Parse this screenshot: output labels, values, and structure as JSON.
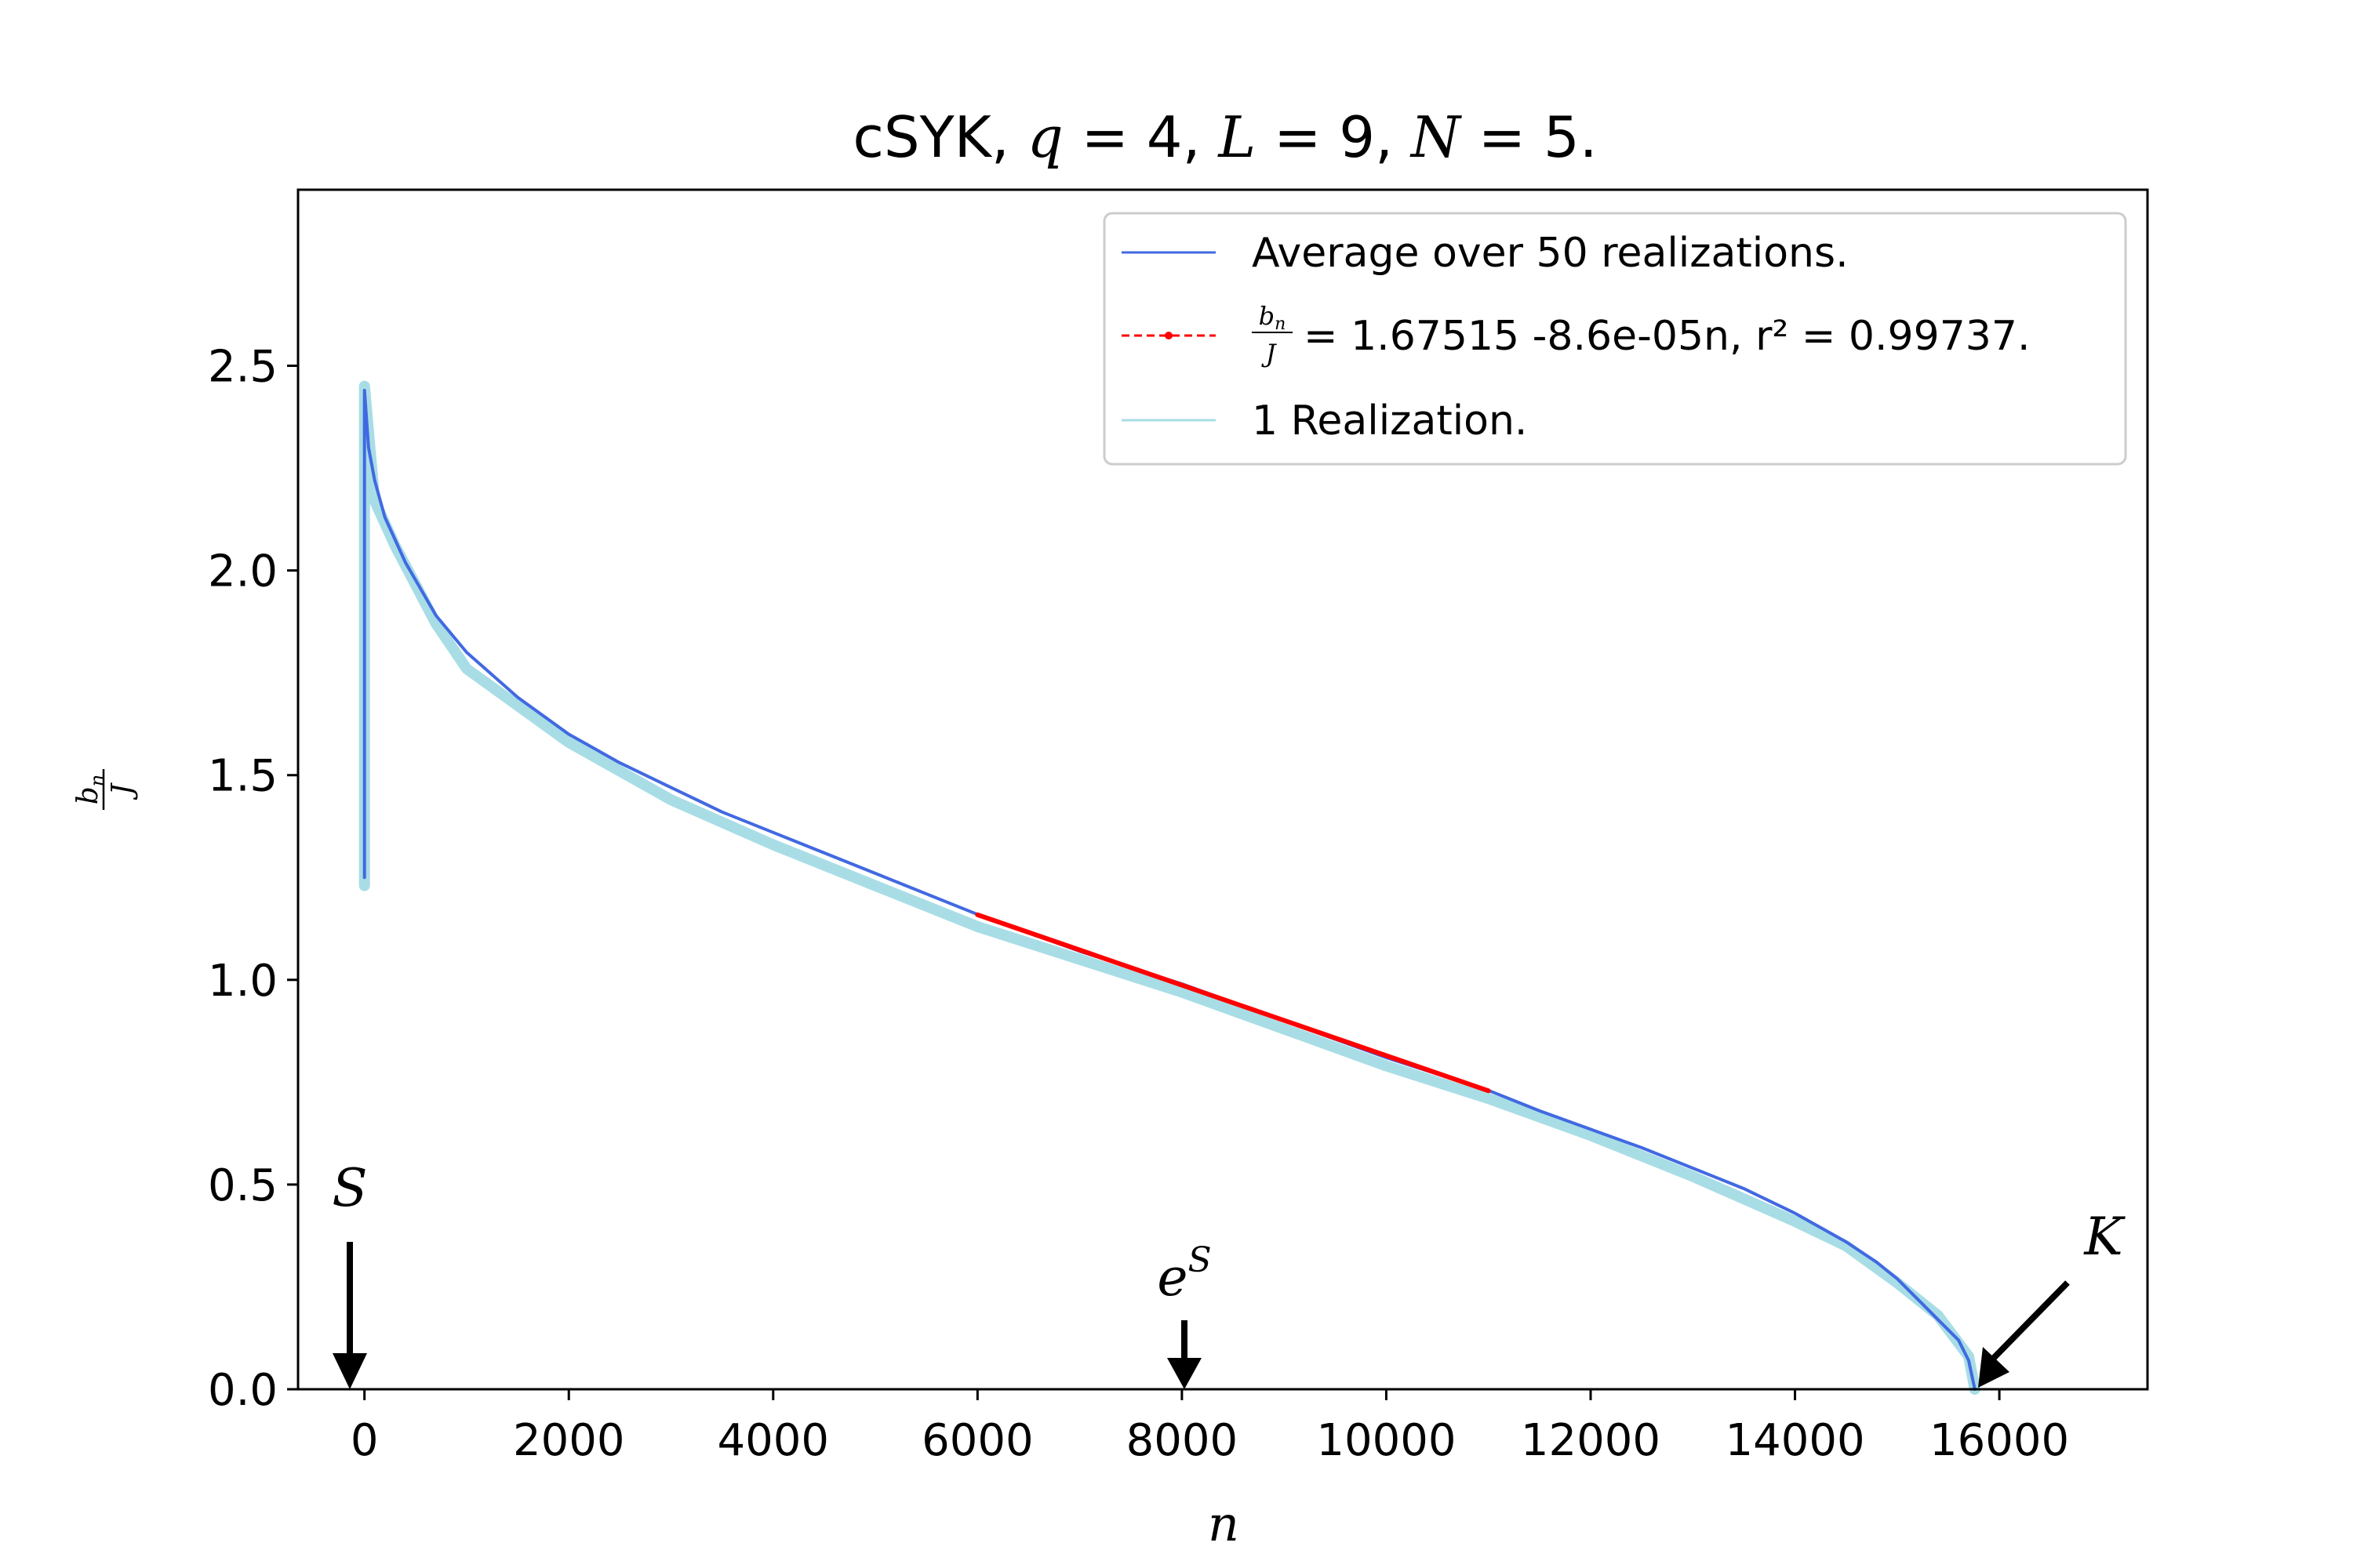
{
  "chart_data": {
    "type": "line",
    "title": "cSYK, q = 4, L = 9, N = 5.",
    "xlabel": "n",
    "ylabel": "b_n / J",
    "xlim": [
      -650,
      17450
    ],
    "ylim": [
      0,
      2.93
    ],
    "xticks": [
      0,
      2000,
      4000,
      6000,
      8000,
      10000,
      12000,
      14000,
      16000
    ],
    "xtick_labels": [
      "0",
      "2000",
      "4000",
      "6000",
      "8000",
      "10000",
      "12000",
      "14000",
      "16000"
    ],
    "yticks": [
      0.0,
      0.5,
      1.0,
      1.5,
      2.0,
      2.5
    ],
    "ytick_labels": [
      "0.0",
      "0.5",
      "1.0",
      "1.5",
      "2.0",
      "2.5"
    ],
    "grid": false,
    "legend_position": "top-right",
    "series": [
      {
        "name": "Average over 50 realizations.",
        "color": "#4169e1",
        "x": [
          0,
          0,
          40,
          100,
          200,
          400,
          700,
          1000,
          1500,
          2000,
          2500,
          3000,
          3500,
          4000,
          4500,
          5000,
          5500,
          6000,
          7000,
          8000,
          9000,
          10000,
          11000,
          11500,
          12000,
          12500,
          13000,
          13500,
          14000,
          14500,
          14800,
          15000,
          15200,
          15400,
          15600,
          15700,
          15760
        ],
        "y": [
          1.25,
          2.44,
          2.3,
          2.22,
          2.13,
          2.02,
          1.89,
          1.8,
          1.69,
          1.6,
          1.53,
          1.47,
          1.41,
          1.36,
          1.31,
          1.26,
          1.21,
          1.16,
          1.07,
          0.99,
          0.9,
          0.81,
          0.73,
          0.68,
          0.635,
          0.59,
          0.54,
          0.49,
          0.43,
          0.36,
          0.31,
          0.27,
          0.22,
          0.17,
          0.12,
          0.07,
          0.0
        ]
      },
      {
        "name": "b_n / J = 1.67515 -8.6e-05n, r^2 = 0.99737.",
        "color": "#ff0000",
        "x": [
          6000,
          11000
        ],
        "y": [
          1.159,
          0.729
        ]
      },
      {
        "name": "1 Realization.",
        "color": "#a8dde6",
        "x": [
          0,
          0,
          100,
          300,
          700,
          1000,
          2000,
          3000,
          4000,
          5000,
          6000,
          7000,
          8000,
          9000,
          10000,
          11000,
          12000,
          13000,
          14000,
          14500,
          15000,
          15400,
          15700,
          15760
        ],
        "y": [
          1.23,
          2.45,
          2.17,
          2.06,
          1.87,
          1.76,
          1.58,
          1.44,
          1.33,
          1.23,
          1.13,
          1.05,
          0.97,
          0.88,
          0.79,
          0.71,
          0.62,
          0.52,
          0.41,
          0.35,
          0.26,
          0.18,
          0.08,
          0.0
        ]
      }
    ],
    "legend": [
      {
        "label": "Average over 50 realizations.",
        "color": "#4169e1"
      },
      {
        "label": "= 1.67515 -8.6e-05n, r² = 0.99737.",
        "color": "#ff0000"
      },
      {
        "label": "1 Realization.",
        "color": "#a8dde6"
      }
    ],
    "annotations": [
      {
        "label": "S",
        "arrow_x": 0
      },
      {
        "label": "e",
        "sup": "S",
        "arrow_x": 8100
      },
      {
        "label": "K",
        "arrow_x": 15760
      }
    ]
  }
}
